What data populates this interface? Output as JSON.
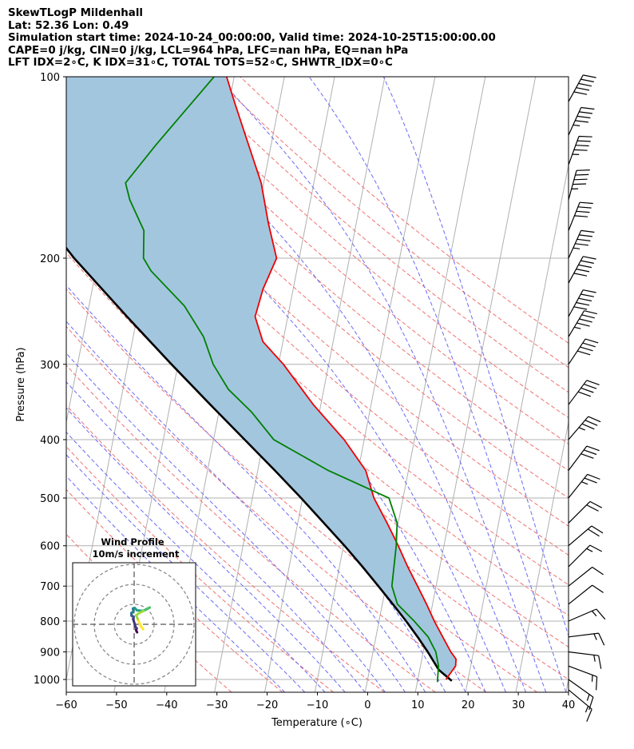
{
  "header": {
    "title": "SkewTLogP Mildenhall",
    "latlon": "Lat: 52.36   Lon: 0.49",
    "times": "Simulation start time: 2024-10-24_00:00:00, Valid time: 2024-10-25T15:00:00.00",
    "cape": "CAPE=0 j/kg, CIN=0 j/kg, LCL=964 hPa, LFC=nan hPa, EQ=nan hPa",
    "indices": "LFT IDX=2∘C, K IDX=31∘C, TOTAL TOTS=52∘C, SHWTR_IDX=0∘C"
  },
  "chart_data": {
    "type": "skew-t log-p",
    "xlabel": "Temperature (∘C)",
    "ylabel": "Pressure (hPa)",
    "xlim": [
      -60,
      40
    ],
    "ylim_hpa": [
      1050,
      100
    ],
    "x_ticks": [
      -60,
      -50,
      -40,
      -30,
      -20,
      -10,
      0,
      10,
      20,
      30,
      40
    ],
    "x_tick_labels": [
      "−60",
      "−50",
      "−40",
      "−30",
      "−20",
      "−10",
      "0",
      "10",
      "20",
      "30",
      "40"
    ],
    "p_ticks": [
      1000,
      900,
      800,
      700,
      600,
      500,
      400,
      300,
      200,
      100
    ],
    "grid": true,
    "series": [
      {
        "role": "temperature",
        "color": "#ee0000",
        "points": [
          [
            1000,
            15.6
          ],
          [
            950,
            17.0
          ],
          [
            925,
            16.8
          ],
          [
            900,
            15.5
          ],
          [
            850,
            13.3
          ],
          [
            800,
            11.0
          ],
          [
            750,
            8.8
          ],
          [
            700,
            6.3
          ],
          [
            650,
            3.6
          ],
          [
            600,
            0.9
          ],
          [
            550,
            -2.2
          ],
          [
            500,
            -5.8
          ],
          [
            450,
            -8.5
          ],
          [
            400,
            -14.0
          ],
          [
            350,
            -21.5
          ],
          [
            300,
            -29.0
          ],
          [
            275,
            -34.0
          ],
          [
            250,
            -36.5
          ],
          [
            225,
            -36.0
          ],
          [
            200,
            -34.5
          ],
          [
            175,
            -37.5
          ],
          [
            150,
            -40.5
          ],
          [
            125,
            -45.5
          ],
          [
            110,
            -49.0
          ],
          [
            100,
            -51.5
          ]
        ]
      },
      {
        "role": "dewpoint",
        "color": "#008000",
        "points": [
          [
            1010,
            14.0
          ],
          [
            950,
            13.6
          ],
          [
            900,
            12.5
          ],
          [
            850,
            10.4
          ],
          [
            800,
            7.0
          ],
          [
            750,
            3.0
          ],
          [
            700,
            1.2
          ],
          [
            600,
            0.5
          ],
          [
            550,
            -0.2
          ],
          [
            500,
            -2.8
          ],
          [
            450,
            -16.0
          ],
          [
            400,
            -28.0
          ],
          [
            360,
            -33.5
          ],
          [
            330,
            -39.0
          ],
          [
            300,
            -43.0
          ],
          [
            270,
            -46.0
          ],
          [
            240,
            -51.0
          ],
          [
            210,
            -59.0
          ],
          [
            200,
            -61.0
          ],
          [
            180,
            -62.0
          ],
          [
            160,
            -66.0
          ],
          [
            150,
            -67.5
          ],
          [
            130,
            -63.0
          ],
          [
            100,
            -54.0
          ]
        ]
      },
      {
        "role": "parcel",
        "color": "#000000",
        "points": [
          [
            1005,
            16.8
          ],
          [
            964,
            13.8
          ],
          [
            900,
            10.9
          ],
          [
            850,
            8.3
          ],
          [
            800,
            5.4
          ],
          [
            750,
            2.1
          ],
          [
            700,
            -1.5
          ],
          [
            650,
            -5.4
          ],
          [
            600,
            -9.8
          ],
          [
            550,
            -14.8
          ],
          [
            500,
            -20.3
          ],
          [
            450,
            -26.6
          ],
          [
            400,
            -33.8
          ],
          [
            350,
            -42.0
          ],
          [
            300,
            -51.3
          ],
          [
            250,
            -62.0
          ],
          [
            200,
            -74.8
          ],
          [
            150,
            -89.5
          ],
          [
            100,
            -107.7
          ]
        ]
      }
    ],
    "wind_barbs": [
      {
        "p": 1040,
        "u": -6,
        "v": 5
      },
      {
        "p": 1000,
        "u": -7,
        "v": 5
      },
      {
        "p": 950,
        "u": -8,
        "v": 3
      },
      {
        "p": 900,
        "u": -8,
        "v": 1
      },
      {
        "p": 850,
        "u": -8,
        "v": -1
      },
      {
        "p": 800,
        "u": -7,
        "v": -3
      },
      {
        "p": 750,
        "u": -5,
        "v": -4
      },
      {
        "p": 700,
        "u": -5,
        "v": -4
      },
      {
        "p": 650,
        "u": -5,
        "v": -5
      },
      {
        "p": 600,
        "u": -7,
        "v": -6
      },
      {
        "p": 550,
        "u": -8,
        "v": -8
      },
      {
        "p": 500,
        "u": -8,
        "v": -10
      },
      {
        "p": 450,
        "u": -9,
        "v": -12
      },
      {
        "p": 400,
        "u": -12,
        "v": -14
      },
      {
        "p": 350,
        "u": -12,
        "v": -16
      },
      {
        "p": 300,
        "u": -12,
        "v": -18
      },
      {
        "p": 270,
        "u": -12,
        "v": -20
      },
      {
        "p": 250,
        "u": -12,
        "v": -22
      },
      {
        "p": 220,
        "u": -12,
        "v": -22
      },
      {
        "p": 200,
        "u": -10,
        "v": -22
      },
      {
        "p": 180,
        "u": -8,
        "v": -20
      },
      {
        "p": 160,
        "u": -6,
        "v": -22
      },
      {
        "p": 140,
        "u": -8,
        "v": -22
      },
      {
        "p": 125,
        "u": -10,
        "v": -22
      },
      {
        "p": 110,
        "u": -12,
        "v": -22
      }
    ],
    "hodograph": {
      "title": "Wind Profile",
      "subtitle": "10m/s increment",
      "rings_ms": [
        10,
        20,
        30
      ],
      "trace": [
        [
          1.5,
          -4.0
        ],
        [
          1.2,
          -3.5
        ],
        [
          1.0,
          -2.8
        ],
        [
          1.3,
          -2.0
        ],
        [
          0.8,
          -1.5
        ],
        [
          -0.5,
          2.6
        ],
        [
          -0.3,
          3.8
        ],
        [
          -1.3,
          4.3
        ],
        [
          -1.4,
          5.7
        ],
        [
          -0.4,
          6.0
        ],
        [
          -0.6,
          7.9
        ],
        [
          0.3,
          8.2
        ],
        [
          1.4,
          7.0
        ],
        [
          4.4,
          6.7
        ],
        [
          6.5,
          7.7
        ],
        [
          7.8,
          8.4
        ],
        [
          4.6,
          6.7
        ],
        [
          2.5,
          5.6
        ],
        [
          1.0,
          4.5
        ],
        [
          2.2,
          1.7
        ],
        [
          3.3,
          -0.8
        ],
        [
          4.5,
          -2.5
        ]
      ]
    }
  }
}
